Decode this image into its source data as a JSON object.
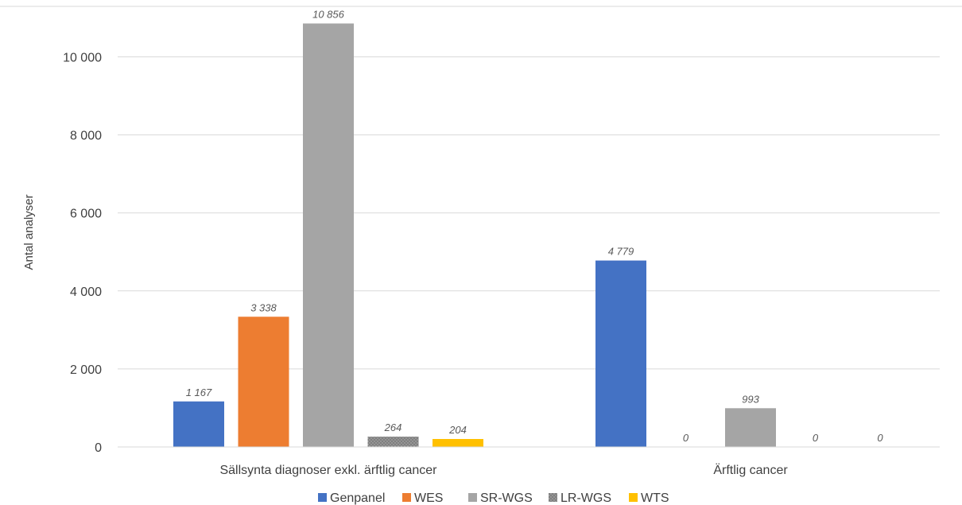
{
  "chart_data": {
    "type": "bar",
    "title": "",
    "xlabel": "",
    "ylabel": "Antal analyser",
    "ylim": [
      0,
      11000
    ],
    "yticks": [
      0,
      2000,
      4000,
      6000,
      8000,
      10000
    ],
    "ytick_labels": [
      "0",
      "2 000",
      "4 000",
      "6 000",
      "8 000",
      "10 000"
    ],
    "grid": true,
    "legend_position": "bottom",
    "categories": [
      "Sällsynta diagnoser exkl. ärftlig cancer",
      "Ärftlig cancer"
    ],
    "series": [
      {
        "name": "Genpanel",
        "color": "#4472C4",
        "pattern": "solid",
        "values": [
          1167,
          4779
        ],
        "labels": [
          "1 167",
          "4 779"
        ]
      },
      {
        "name": "WES",
        "color": "#ED7D31",
        "pattern": "solid",
        "values": [
          3338,
          0
        ],
        "labels": [
          "3 338",
          "0"
        ]
      },
      {
        "name": "SR-WGS",
        "color": "#A5A5A5",
        "pattern": "solid",
        "values": [
          10856,
          993
        ],
        "labels": [
          "10 856",
          "993"
        ]
      },
      {
        "name": "LR-WGS",
        "color": "#7F7F7F",
        "pattern": "dotted",
        "values": [
          264,
          0
        ],
        "labels": [
          "264",
          "0"
        ]
      },
      {
        "name": "WTS",
        "color": "#FFC000",
        "pattern": "solid",
        "values": [
          204,
          0
        ],
        "labels": [
          "204",
          "0"
        ]
      }
    ]
  }
}
